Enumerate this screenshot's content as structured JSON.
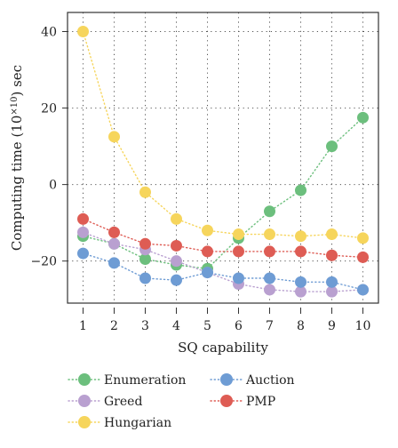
{
  "chart_data": {
    "type": "scatter",
    "xlabel": "SQ capability",
    "ylabel": "Computing time (10",
    "ylabel_sup": "×10",
    "ylabel_tail": ") sec",
    "x": [
      1,
      2,
      3,
      4,
      5,
      6,
      7,
      8,
      9,
      10
    ],
    "xticks": [
      1,
      2,
      3,
      4,
      5,
      6,
      7,
      8,
      9,
      10
    ],
    "xlim": [
      0.5,
      10.5
    ],
    "yticks": [
      40,
      20,
      0,
      -20
    ],
    "ylim": [
      -31,
      45
    ],
    "grid": true,
    "legend_position": "bottom",
    "series": [
      {
        "name": "Enumeration",
        "color": "#6cbf7d",
        "values": [
          -13.5,
          -15.5,
          -19.5,
          -21,
          -22,
          -14,
          -7,
          -1.5,
          10,
          17.5
        ]
      },
      {
        "name": "Greed",
        "color": "#b9a0d0",
        "values": [
          -12.5,
          -15.5,
          -17,
          -20,
          -23,
          -26,
          -27.5,
          -28,
          -28,
          -27.5
        ]
      },
      {
        "name": "Hungarian",
        "color": "#f6d55c",
        "values": [
          40,
          12.5,
          -2,
          -9,
          -12,
          -13,
          -13,
          -13.5,
          -13,
          -14
        ]
      },
      {
        "name": "Auction",
        "color": "#6e9cd4",
        "values": [
          -18,
          -20.5,
          -24.5,
          -25,
          -23,
          -24.5,
          -24.5,
          -25.5,
          -25.5,
          -27.5
        ]
      },
      {
        "name": "PMP",
        "color": "#de5c54",
        "values": [
          -9,
          -12.5,
          -15.5,
          -16,
          -17.5,
          -17.5,
          -17.5,
          -17.5,
          -18.5,
          -19
        ]
      }
    ],
    "legend_order": [
      0,
      3,
      1,
      4,
      2
    ]
  }
}
